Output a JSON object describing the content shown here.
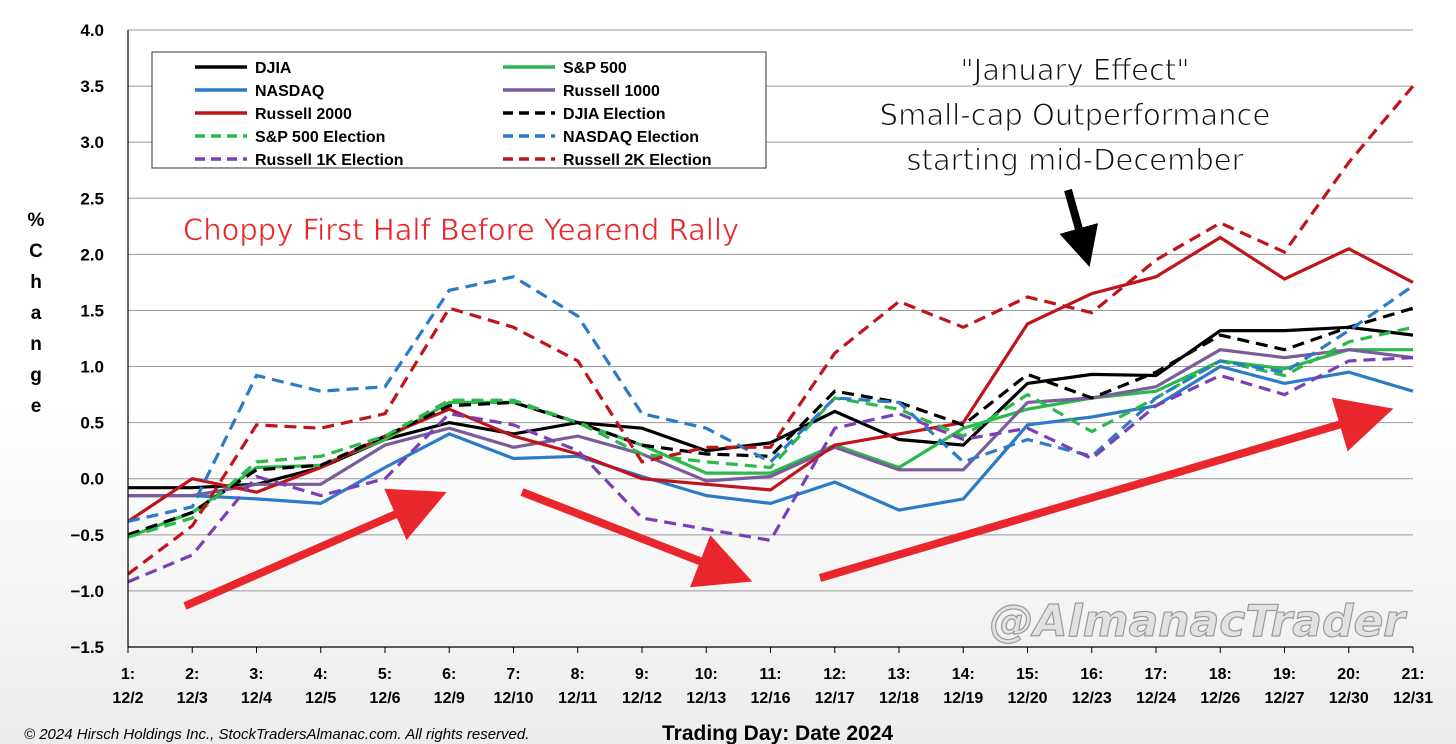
{
  "chart_data": {
    "type": "line",
    "xlabel": "Trading Day: Date 2024",
    "ylabel": "% Change",
    "ylim": [
      -1.5,
      4.0
    ],
    "yticks": [
      "4.0",
      "3.5",
      "3.0",
      "2.5",
      "2.0",
      "1.5",
      "1.0",
      "0.5",
      "0.0",
      "−0.5",
      "−1.0",
      "−1.5"
    ],
    "ytick_values": [
      4.0,
      3.5,
      3.0,
      2.5,
      2.0,
      1.5,
      1.0,
      0.5,
      0.0,
      -0.5,
      -1.0,
      -1.5
    ],
    "categories": [
      {
        "day": "1:",
        "date": "12/2"
      },
      {
        "day": "2:",
        "date": "12/3"
      },
      {
        "day": "3:",
        "date": "12/4"
      },
      {
        "day": "4:",
        "date": "12/5"
      },
      {
        "day": "5:",
        "date": "12/6"
      },
      {
        "day": "6:",
        "date": "12/9"
      },
      {
        "day": "7:",
        "date": "12/10"
      },
      {
        "day": "8:",
        "date": "12/11"
      },
      {
        "day": "9:",
        "date": "12/12"
      },
      {
        "day": "10:",
        "date": "12/13"
      },
      {
        "day": "11:",
        "date": "12/16"
      },
      {
        "day": "12:",
        "date": "12/17"
      },
      {
        "day": "13:",
        "date": "12/18"
      },
      {
        "day": "14:",
        "date": "12/19"
      },
      {
        "day": "15:",
        "date": "12/20"
      },
      {
        "day": "16:",
        "date": "12/23"
      },
      {
        "day": "17:",
        "date": "12/24"
      },
      {
        "day": "18:",
        "date": "12/26"
      },
      {
        "day": "19:",
        "date": "12/27"
      },
      {
        "day": "20:",
        "date": "12/30"
      },
      {
        "day": "21:",
        "date": "12/31"
      }
    ],
    "grid": true,
    "legend_position": "top-left",
    "series": [
      {
        "name": "DJIA",
        "color": "#000000",
        "dash": false,
        "values": [
          -0.08,
          -0.08,
          -0.05,
          0.1,
          0.35,
          0.5,
          0.4,
          0.5,
          0.45,
          0.25,
          0.32,
          0.6,
          0.35,
          0.3,
          0.85,
          0.93,
          0.92,
          1.32,
          1.32,
          1.35,
          1.28
        ]
      },
      {
        "name": "S&P 500",
        "color": "#2db84b",
        "dash": false,
        "values": [
          -0.52,
          -0.3,
          0.1,
          0.12,
          0.35,
          0.68,
          0.68,
          0.5,
          0.3,
          0.05,
          0.05,
          0.3,
          0.1,
          0.45,
          0.62,
          0.72,
          0.78,
          1.05,
          0.98,
          1.15,
          1.15
        ]
      },
      {
        "name": "NASDAQ",
        "color": "#2b7bc6",
        "dash": false,
        "values": [
          -0.15,
          -0.15,
          -0.18,
          -0.22,
          0.1,
          0.4,
          0.18,
          0.2,
          0.02,
          -0.15,
          -0.22,
          -0.03,
          -0.28,
          -0.18,
          0.48,
          0.55,
          0.65,
          1.0,
          0.85,
          0.95,
          0.78
        ]
      },
      {
        "name": "Russell 1000",
        "color": "#7a5c9a",
        "dash": false,
        "values": [
          -0.15,
          -0.15,
          -0.05,
          -0.05,
          0.3,
          0.45,
          0.28,
          0.38,
          0.22,
          -0.02,
          0.02,
          0.28,
          0.08,
          0.08,
          0.68,
          0.72,
          0.82,
          1.15,
          1.08,
          1.15,
          1.08
        ]
      },
      {
        "name": "Russell 2000",
        "color": "#c0141b",
        "dash": false,
        "values": [
          -0.38,
          0.0,
          -0.12,
          0.1,
          0.38,
          0.62,
          0.38,
          0.22,
          0.0,
          -0.05,
          -0.1,
          0.3,
          0.4,
          0.5,
          1.38,
          1.65,
          1.8,
          2.15,
          1.78,
          2.05,
          1.75
        ]
      },
      {
        "name": "DJIA Election",
        "color": "#000000",
        "dash": true,
        "values": [
          -0.5,
          -0.3,
          0.08,
          0.12,
          0.38,
          0.65,
          0.68,
          0.5,
          0.3,
          0.22,
          0.2,
          0.78,
          0.68,
          0.48,
          0.93,
          0.72,
          0.95,
          1.28,
          1.15,
          1.35,
          1.52
        ]
      },
      {
        "name": "S&P 500 Election",
        "color": "#2db84b",
        "dash": true,
        "values": [
          -0.52,
          -0.35,
          0.15,
          0.2,
          0.38,
          0.7,
          0.7,
          0.5,
          0.22,
          0.15,
          0.1,
          0.72,
          0.62,
          0.38,
          0.75,
          0.42,
          0.72,
          1.05,
          0.92,
          1.22,
          1.35
        ]
      },
      {
        "name": "NASDAQ Election",
        "color": "#2b7bc6",
        "dash": true,
        "values": [
          -0.38,
          -0.25,
          0.92,
          0.78,
          0.82,
          1.68,
          1.8,
          1.45,
          0.58,
          0.45,
          0.15,
          0.72,
          0.68,
          0.15,
          0.35,
          0.2,
          0.72,
          1.05,
          0.95,
          1.32,
          1.72
        ]
      },
      {
        "name": "Russell 1K Election",
        "color": "#7b3fb5",
        "dash": true,
        "values": [
          -0.92,
          -0.68,
          0.02,
          -0.15,
          0.0,
          0.58,
          0.48,
          0.25,
          -0.35,
          -0.45,
          -0.55,
          0.45,
          0.58,
          0.35,
          0.45,
          0.18,
          0.65,
          0.92,
          0.75,
          1.05,
          1.08
        ]
      },
      {
        "name": "Russell 2K Election",
        "color": "#c0141b",
        "dash": true,
        "values": [
          -0.85,
          -0.42,
          0.48,
          0.45,
          0.58,
          1.52,
          1.35,
          1.05,
          0.15,
          0.28,
          0.28,
          1.12,
          1.58,
          1.35,
          1.62,
          1.48,
          1.95,
          2.28,
          2.02,
          2.82,
          3.5
        ]
      }
    ],
    "annotations": {
      "january_effect": [
        "\"January Effect\"",
        "Small-cap Outperformance",
        "starting mid-December"
      ],
      "choppy": "Choppy First Half Before Yearend Rally",
      "watermark": "@AlmanacTrader",
      "copyright": "© 2024 Hirsch Holdings Inc., StockTradersAlmanac.com. All rights reserved."
    }
  }
}
